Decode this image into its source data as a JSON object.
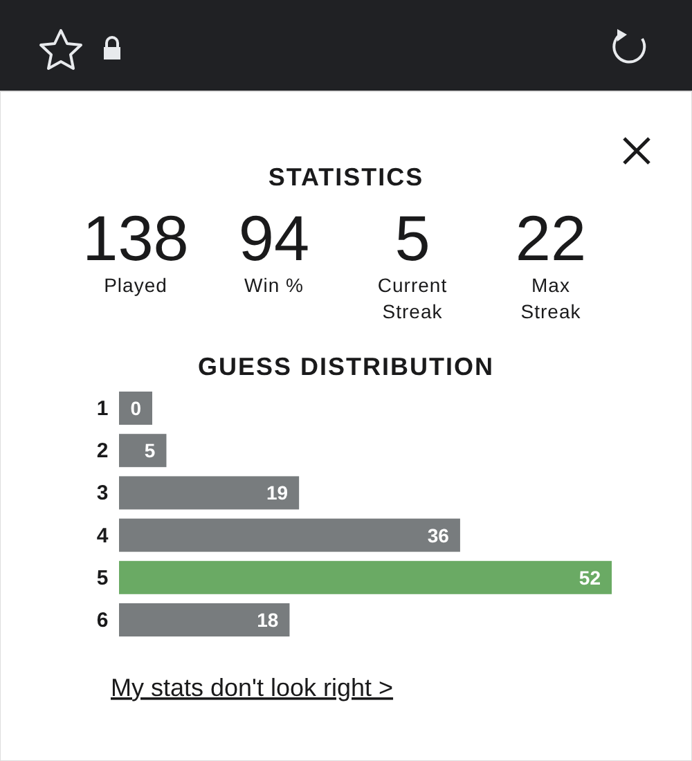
{
  "chart_data": [
    {
      "type": "other",
      "title": "STATISTICS",
      "annotations": [
        "138",
        "Played",
        "94",
        "Win %",
        "5",
        "Current Streak",
        "22",
        "Max Streak"
      ]
    },
    {
      "type": "bar",
      "orientation": "horizontal",
      "title": "GUESS DISTRIBUTION",
      "categories": [
        "1",
        "2",
        "3",
        "4",
        "5",
        "6"
      ],
      "values": [
        0,
        5,
        19,
        36,
        52,
        18
      ],
      "colors": [
        "#787c7e",
        "#787c7e",
        "#787c7e",
        "#787c7e",
        "#6aaa64",
        "#787c7e"
      ],
      "data_labels": true,
      "annotations": [
        "My stats don't look right >"
      ]
    }
  ]
}
